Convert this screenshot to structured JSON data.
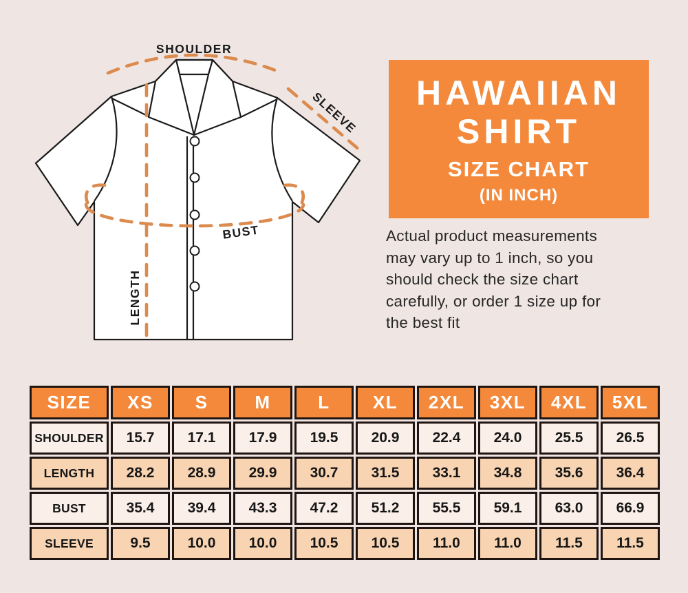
{
  "page": {
    "background": "#efe6e3"
  },
  "diagram": {
    "labels": {
      "shoulder": "SHOULDER",
      "sleeve": "SLEEVE",
      "bust": "BUST",
      "length": "LENGTH"
    },
    "colors": {
      "dash_orange": "#dc8b4f",
      "shirt_outline": "#1b1b1b",
      "shirt_fill": "#ffffff"
    }
  },
  "title_box": {
    "background": "#f4893b",
    "line1": "HAWAIIAN",
    "line2": "SHIRT",
    "line3": "SIZE CHART",
    "line4": "(IN INCH)"
  },
  "description_lines": [
    "Actual product measurements",
    "may vary up to 1 inch, so you",
    "should check the size chart",
    "carefully, or order 1 size up for",
    "the best fit"
  ],
  "chart_data": {
    "type": "table",
    "title": "HAWAIIAN SHIRT SIZE CHART (IN INCH)",
    "unit": "inch",
    "columns": [
      "SIZE",
      "XS",
      "S",
      "M",
      "L",
      "XL",
      "2XL",
      "3XL",
      "4XL",
      "5XL"
    ],
    "rows": [
      {
        "label": "SHOULDER",
        "values": [
          "15.7",
          "17.1",
          "17.9",
          "19.5",
          "20.9",
          "22.4",
          "24.0",
          "25.5",
          "26.5"
        ]
      },
      {
        "label": "LENGTH",
        "values": [
          "28.2",
          "28.9",
          "29.9",
          "30.7",
          "31.5",
          "33.1",
          "34.8",
          "35.6",
          "36.4"
        ]
      },
      {
        "label": "BUST",
        "values": [
          "35.4",
          "39.4",
          "43.3",
          "47.2",
          "51.2",
          "55.5",
          "59.1",
          "63.0",
          "66.9"
        ]
      },
      {
        "label": "SLEEVE",
        "values": [
          "9.5",
          "10.0",
          "10.0",
          "10.5",
          "10.5",
          "11.0",
          "11.0",
          "11.5",
          "11.5"
        ]
      }
    ],
    "header_bg": "#f4893b",
    "row_bg_alternate": [
      "#fbf0e9",
      "#f8d4b2"
    ],
    "border_color": "#211511"
  }
}
